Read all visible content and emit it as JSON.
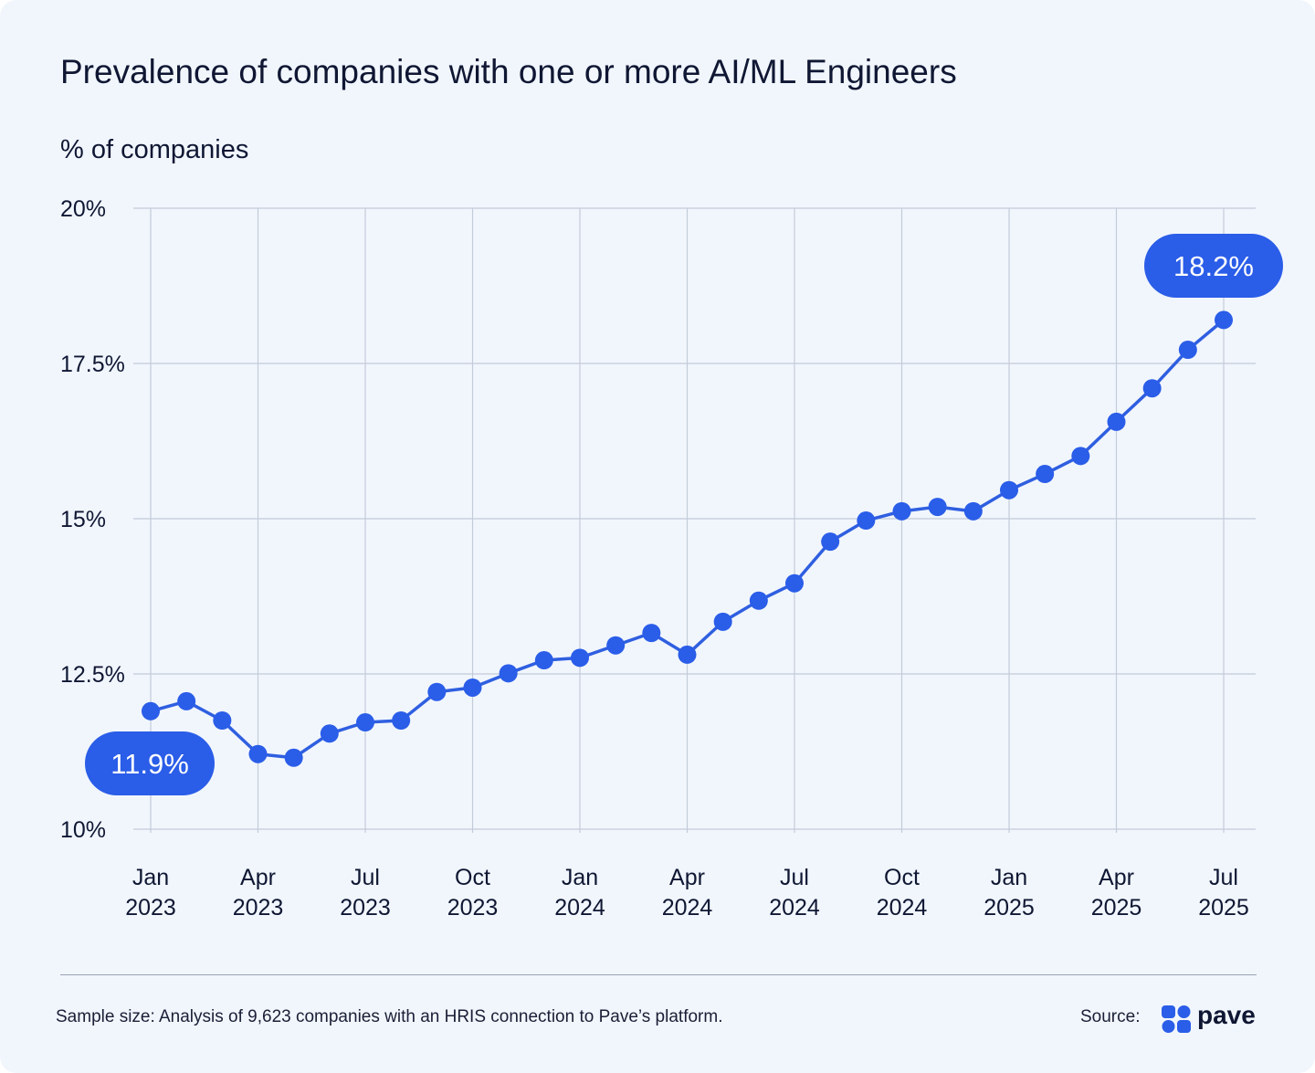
{
  "title": "Prevalence of companies with one or more AI/ML Engineers",
  "footer": {
    "note": "Sample size: Analysis of 9,623 companies with an HRIS connection to Pave’s platform.",
    "source_label": "Source:",
    "logo_text": "pave"
  },
  "colors": {
    "line": "#2f5fe0",
    "marker": "#2a5de8",
    "grid": "#c3cbd9",
    "background": "#f1f6fd"
  },
  "chart_data": {
    "type": "line",
    "title": "Prevalence of companies with one or more AI/ML Engineers",
    "ylabel": "% of companies",
    "xlabel": "",
    "ylim": [
      10,
      20
    ],
    "yticks": [
      10,
      12.5,
      15,
      17.5,
      20
    ],
    "ytick_labels": [
      "10%",
      "12.5%",
      "15%",
      "17.5%",
      "20%"
    ],
    "xtick_labels": [
      [
        "Jan",
        "2023"
      ],
      [
        "Apr",
        "2023"
      ],
      [
        "Jul",
        "2023"
      ],
      [
        "Oct",
        "2023"
      ],
      [
        "Jan",
        "2024"
      ],
      [
        "Apr",
        "2024"
      ],
      [
        "Jul",
        "2024"
      ],
      [
        "Oct",
        "2024"
      ],
      [
        "Jan",
        "2025"
      ],
      [
        "Apr",
        "2025"
      ],
      [
        "Jul",
        "2025"
      ]
    ],
    "grid": true,
    "x": [
      "2023-01",
      "2023-02",
      "2023-03",
      "2023-04",
      "2023-05",
      "2023-06",
      "2023-07",
      "2023-08",
      "2023-09",
      "2023-10",
      "2023-11",
      "2023-12",
      "2024-01",
      "2024-02",
      "2024-03",
      "2024-04",
      "2024-05",
      "2024-06",
      "2024-07",
      "2024-08",
      "2024-09",
      "2024-10",
      "2024-11",
      "2024-12",
      "2025-01",
      "2025-02",
      "2025-03",
      "2025-04",
      "2025-05",
      "2025-06",
      "2025-07"
    ],
    "values": [
      11.9,
      12.06,
      11.75,
      11.21,
      11.15,
      11.54,
      11.72,
      11.75,
      12.21,
      12.28,
      12.51,
      12.72,
      12.76,
      12.96,
      13.16,
      12.81,
      13.34,
      13.68,
      13.96,
      14.63,
      14.97,
      15.12,
      15.19,
      15.12,
      15.46,
      15.72,
      16.01,
      16.56,
      17.1,
      17.72,
      18.2
    ],
    "annotations": [
      {
        "x": "2023-01",
        "label": "11.9%"
      },
      {
        "x": "2025-07",
        "label": "18.2%"
      }
    ]
  }
}
